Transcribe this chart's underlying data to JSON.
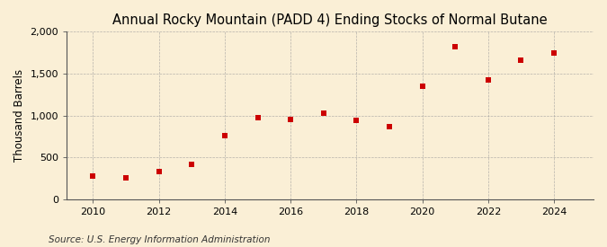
{
  "title": "Annual Rocky Mountain (PADD 4) Ending Stocks of Normal Butane",
  "ylabel": "Thousand Barrels",
  "source": "Source: U.S. Energy Information Administration",
  "years": [
    2010,
    2011,
    2012,
    2013,
    2014,
    2015,
    2016,
    2017,
    2018,
    2019,
    2020,
    2021,
    2022,
    2023,
    2024
  ],
  "values": [
    275,
    255,
    335,
    415,
    760,
    970,
    950,
    1030,
    940,
    870,
    1350,
    1820,
    1420,
    1660,
    1750
  ],
  "marker_color": "#cc0000",
  "marker": "s",
  "marker_size": 4,
  "ylim": [
    0,
    2000
  ],
  "yticks": [
    0,
    500,
    1000,
    1500,
    2000
  ],
  "xticks": [
    2010,
    2012,
    2014,
    2016,
    2018,
    2020,
    2022,
    2024
  ],
  "xlim": [
    2009.2,
    2025.2
  ],
  "background_color": "#faefd6",
  "grid_color": "#999999",
  "title_fontsize": 10.5,
  "label_fontsize": 8.5,
  "tick_fontsize": 8,
  "source_fontsize": 7.5
}
